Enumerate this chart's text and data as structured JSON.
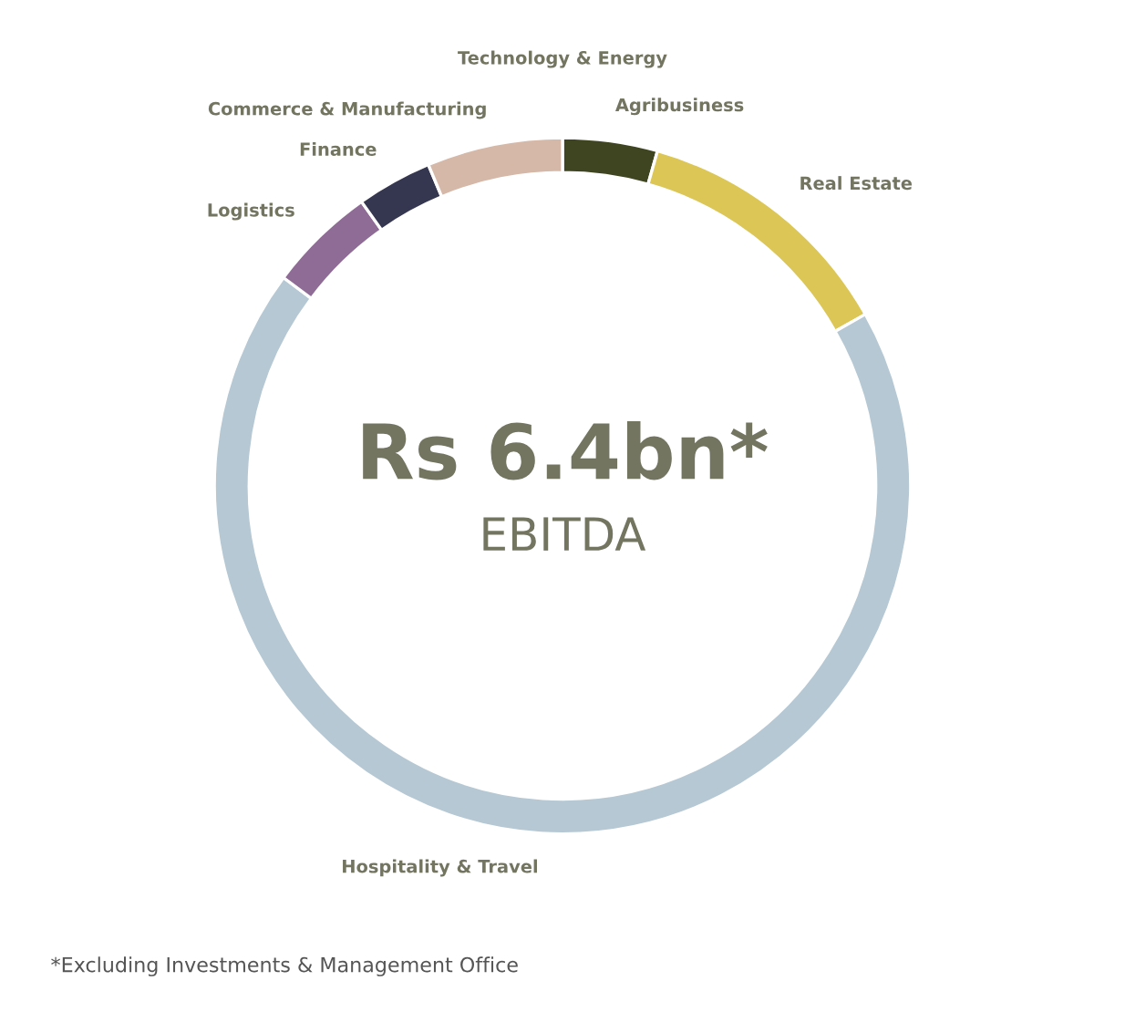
{
  "chart_data": {
    "type": "donut",
    "title": "Rs 6.4bn*",
    "subtitle": "EBITDA",
    "categories": [
      "Technology & Energy",
      "Agribusiness",
      "Real Estate",
      "Hospitality & Travel",
      "Logistics",
      "Finance",
      "Commerce & Manufacturing"
    ],
    "values": [
      0,
      4.4,
      12.4,
      68.4,
      5.0,
      3.5,
      6.3
    ],
    "colors": [
      null,
      "#3f4520",
      "#dcc656",
      "#b5c8d4",
      "#8e6c95",
      "#35364f",
      "#d5b8a8"
    ],
    "annotations": [
      "*Excluding Investments & Management Office"
    ]
  }
}
